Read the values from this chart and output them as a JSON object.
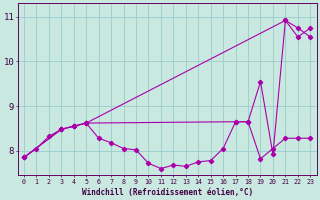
{
  "xlabel": "Windchill (Refroidissement éolien,°C)",
  "bg_color": "#c8e8e0",
  "line_color": "#aa00aa",
  "grid_color": "#99cccc",
  "axis_color": "#660066",
  "tick_color": "#440044",
  "xlim": [
    -0.5,
    23.5
  ],
  "ylim": [
    7.45,
    11.3
  ],
  "yticks": [
    8,
    9,
    10,
    11
  ],
  "xticks": [
    0,
    1,
    2,
    3,
    4,
    5,
    6,
    7,
    8,
    9,
    10,
    11,
    12,
    13,
    14,
    15,
    16,
    17,
    18,
    19,
    20,
    21,
    22,
    23
  ],
  "line1_x": [
    0,
    1,
    2,
    3,
    4,
    5,
    6,
    7,
    8,
    9,
    10,
    11,
    12,
    13,
    14,
    15,
    16,
    17,
    18,
    19,
    20,
    21,
    22,
    23
  ],
  "line1_y": [
    7.85,
    8.05,
    8.32,
    8.48,
    8.55,
    8.62,
    8.28,
    8.18,
    8.05,
    8.02,
    7.72,
    7.6,
    7.68,
    7.65,
    7.75,
    7.78,
    8.05,
    8.65,
    8.65,
    7.82,
    8.05,
    8.28,
    8.28,
    8.28
  ],
  "line2_x": [
    0,
    3,
    4,
    5,
    21,
    22,
    23
  ],
  "line2_y": [
    7.85,
    8.48,
    8.55,
    8.62,
    10.92,
    10.75,
    10.55
  ],
  "line3_x": [
    0,
    3,
    4,
    5,
    17,
    18,
    19,
    20,
    21,
    22,
    23
  ],
  "line3_y": [
    7.85,
    8.48,
    8.55,
    8.62,
    8.65,
    8.65,
    9.55,
    7.92,
    10.92,
    10.55,
    10.75
  ]
}
